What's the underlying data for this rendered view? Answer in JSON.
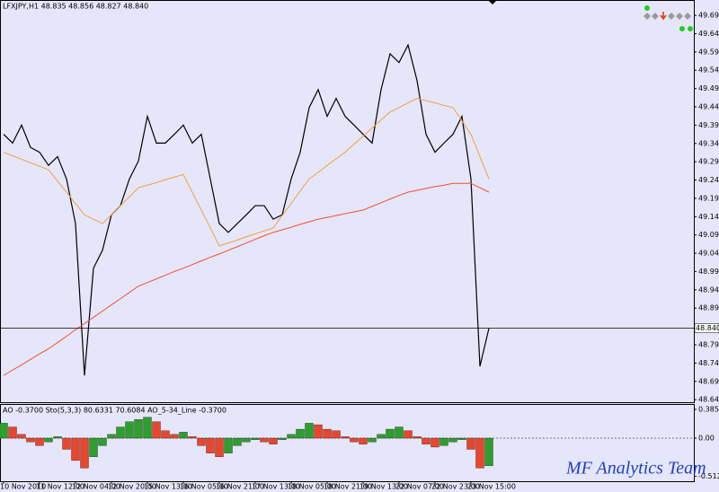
{
  "chart_data": [
    {
      "type": "line",
      "title": "LFXJPY,H1  48.835 48.856 48.827 48.840",
      "ylim": [
        48.638,
        49.732
      ],
      "yticks": [
        49.695,
        49.645,
        49.595,
        49.545,
        49.495,
        49.445,
        49.395,
        49.345,
        49.295,
        49.245,
        49.195,
        49.145,
        49.095,
        49.045,
        48.995,
        48.945,
        48.895,
        48.795,
        48.745,
        48.695,
        48.645
      ],
      "grid": false,
      "last_price": {
        "value": 48.84,
        "label": "48.840"
      },
      "series": [
        {
          "color": "#000000",
          "values": [
            49.37,
            49.346,
            49.395,
            49.334,
            49.321,
            49.285,
            49.309,
            49.248,
            49.126,
            48.711,
            49.004,
            49.053,
            49.15,
            49.175,
            49.248,
            49.297,
            49.419,
            49.346,
            49.346,
            49.37,
            49.395,
            49.346,
            49.37,
            49.248,
            49.126,
            49.102,
            49.126,
            49.15,
            49.175,
            49.175,
            49.138,
            49.15,
            49.248,
            49.321,
            49.443,
            49.492,
            49.419,
            49.468,
            49.419,
            49.395,
            49.37,
            49.346,
            49.492,
            49.59,
            49.566,
            49.614,
            49.517,
            49.37,
            49.321,
            49.346,
            49.37,
            49.419,
            49.248,
            48.736,
            48.84
          ]
        },
        {
          "color": "#f0a040",
          "values": [
            49.321,
            49.311,
            49.302,
            49.292,
            49.283,
            49.273,
            49.242,
            49.212,
            49.181,
            49.15,
            49.138,
            49.126,
            49.15,
            49.175,
            49.199,
            49.224,
            49.231,
            49.238,
            49.246,
            49.253,
            49.26,
            49.211,
            49.163,
            49.114,
            49.065,
            49.073,
            49.081,
            49.09,
            49.098,
            49.106,
            49.114,
            49.148,
            49.181,
            49.215,
            49.248,
            49.266,
            49.285,
            49.303,
            49.321,
            49.343,
            49.365,
            49.387,
            49.409,
            49.431,
            49.443,
            49.456,
            49.468,
            49.462,
            49.456,
            49.449,
            49.443,
            49.407,
            49.37,
            49.309,
            49.248
          ]
        },
        {
          "color": "#f05030",
          "values": [
            48.711,
            48.726,
            48.74,
            48.755,
            48.77,
            48.784,
            48.801,
            48.818,
            48.836,
            48.853,
            48.87,
            48.887,
            48.904,
            48.921,
            48.938,
            48.955,
            48.965,
            48.975,
            48.985,
            48.995,
            49.004,
            49.014,
            49.024,
            49.034,
            49.043,
            49.053,
            49.063,
            49.073,
            49.083,
            49.093,
            49.102,
            49.109,
            49.116,
            49.124,
            49.131,
            49.138,
            49.143,
            49.148,
            49.153,
            49.158,
            49.163,
            49.173,
            49.183,
            49.193,
            49.203,
            49.212,
            49.217,
            49.222,
            49.227,
            49.231,
            49.236,
            49.236,
            49.236,
            49.224,
            49.212
          ]
        }
      ],
      "watermark": "MF Analytics Team"
    },
    {
      "type": "bar",
      "title": "AO -0.3700  Sto(5,3,3) 80.6331 70.6084  AO_5-34_Line -0.3700",
      "ylim": [
        -0.566,
        0.446
      ],
      "yticks": [
        0.3854,
        {
          "value": 0,
          "label": "0.00"
        },
        -0.512
      ],
      "up_color": "#2e9e2e",
      "down_color": "#e8472e",
      "categories": [
        "10 Nov 2010",
        null,
        null,
        null,
        "11 Nov 12:00",
        null,
        null,
        null,
        "12 Nov 04:00",
        null,
        null,
        null,
        "12 Nov 20:00",
        null,
        null,
        null,
        "15 Nov 13:00",
        null,
        null,
        null,
        "16 Nov 05:00",
        null,
        null,
        null,
        "16 Nov 21:00",
        null,
        null,
        null,
        "17 Nov 13:00",
        null,
        null,
        null,
        "18 Nov 05:00",
        null,
        null,
        null,
        "18 Nov 21:00",
        null,
        null,
        null,
        "19 Nov 13:00",
        null,
        null,
        null,
        "22 Nov 07:00",
        null,
        null,
        null,
        "22 Nov 23:00",
        null,
        null,
        null,
        "23 Nov 15:00",
        null,
        null
      ],
      "values": [
        0.2,
        0.15,
        0.05,
        -0.05,
        -0.1,
        -0.05,
        0.02,
        -0.15,
        -0.3,
        -0.4,
        -0.25,
        -0.1,
        0.05,
        0.15,
        0.22,
        0.25,
        0.28,
        0.22,
        0.1,
        0.05,
        0.08,
        0.02,
        -0.1,
        -0.2,
        -0.25,
        -0.2,
        -0.1,
        -0.05,
        -0.02,
        -0.05,
        -0.08,
        -0.02,
        0.05,
        0.12,
        0.2,
        0.18,
        0.12,
        0.1,
        0.02,
        -0.05,
        -0.08,
        -0.05,
        0.05,
        0.12,
        0.15,
        0.1,
        0.02,
        -0.08,
        -0.12,
        -0.1,
        -0.05,
        -0.02,
        -0.15,
        -0.4,
        -0.37
      ]
    }
  ]
}
